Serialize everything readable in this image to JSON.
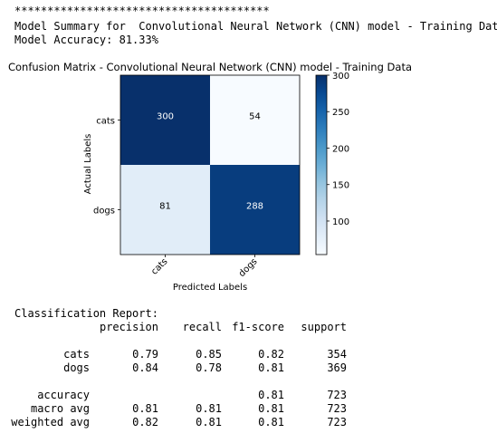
{
  "stars": "***************************************",
  "summary_line": "Model Summary for  Convolutional Neural Network (CNN) model - Training Data",
  "accuracy_line": "Model Accuracy: 81.33%",
  "chart_data": {
    "type": "heatmap",
    "title": "Confusion Matrix - Convolutional Neural Network (CNN) model - Training Data",
    "xlabel": "Predicted Labels",
    "ylabel": "Actual Labels",
    "x_categories": [
      "cats",
      "dogs"
    ],
    "y_categories": [
      "cats",
      "dogs"
    ],
    "values": [
      [
        300,
        54
      ],
      [
        81,
        288
      ]
    ],
    "colormap": "Blues",
    "colorbar_range": [
      54,
      300
    ],
    "colorbar_ticks": [
      100,
      150,
      200,
      250,
      300
    ],
    "grid": false
  },
  "report": {
    "title": "Classification Report:",
    "headers": [
      "precision",
      "recall",
      "f1-score",
      "support"
    ],
    "rows": [
      {
        "label": "cats",
        "values": [
          "0.79",
          "0.85",
          "0.82",
          "354"
        ]
      },
      {
        "label": "dogs",
        "values": [
          "0.84",
          "0.78",
          "0.81",
          "369"
        ]
      },
      {
        "label": "accuracy",
        "values": [
          "",
          "",
          "0.81",
          "723"
        ]
      },
      {
        "label": "macro avg",
        "values": [
          "0.81",
          "0.81",
          "0.81",
          "723"
        ]
      },
      {
        "label": "weighted avg",
        "values": [
          "0.82",
          "0.81",
          "0.81",
          "723"
        ]
      }
    ]
  }
}
